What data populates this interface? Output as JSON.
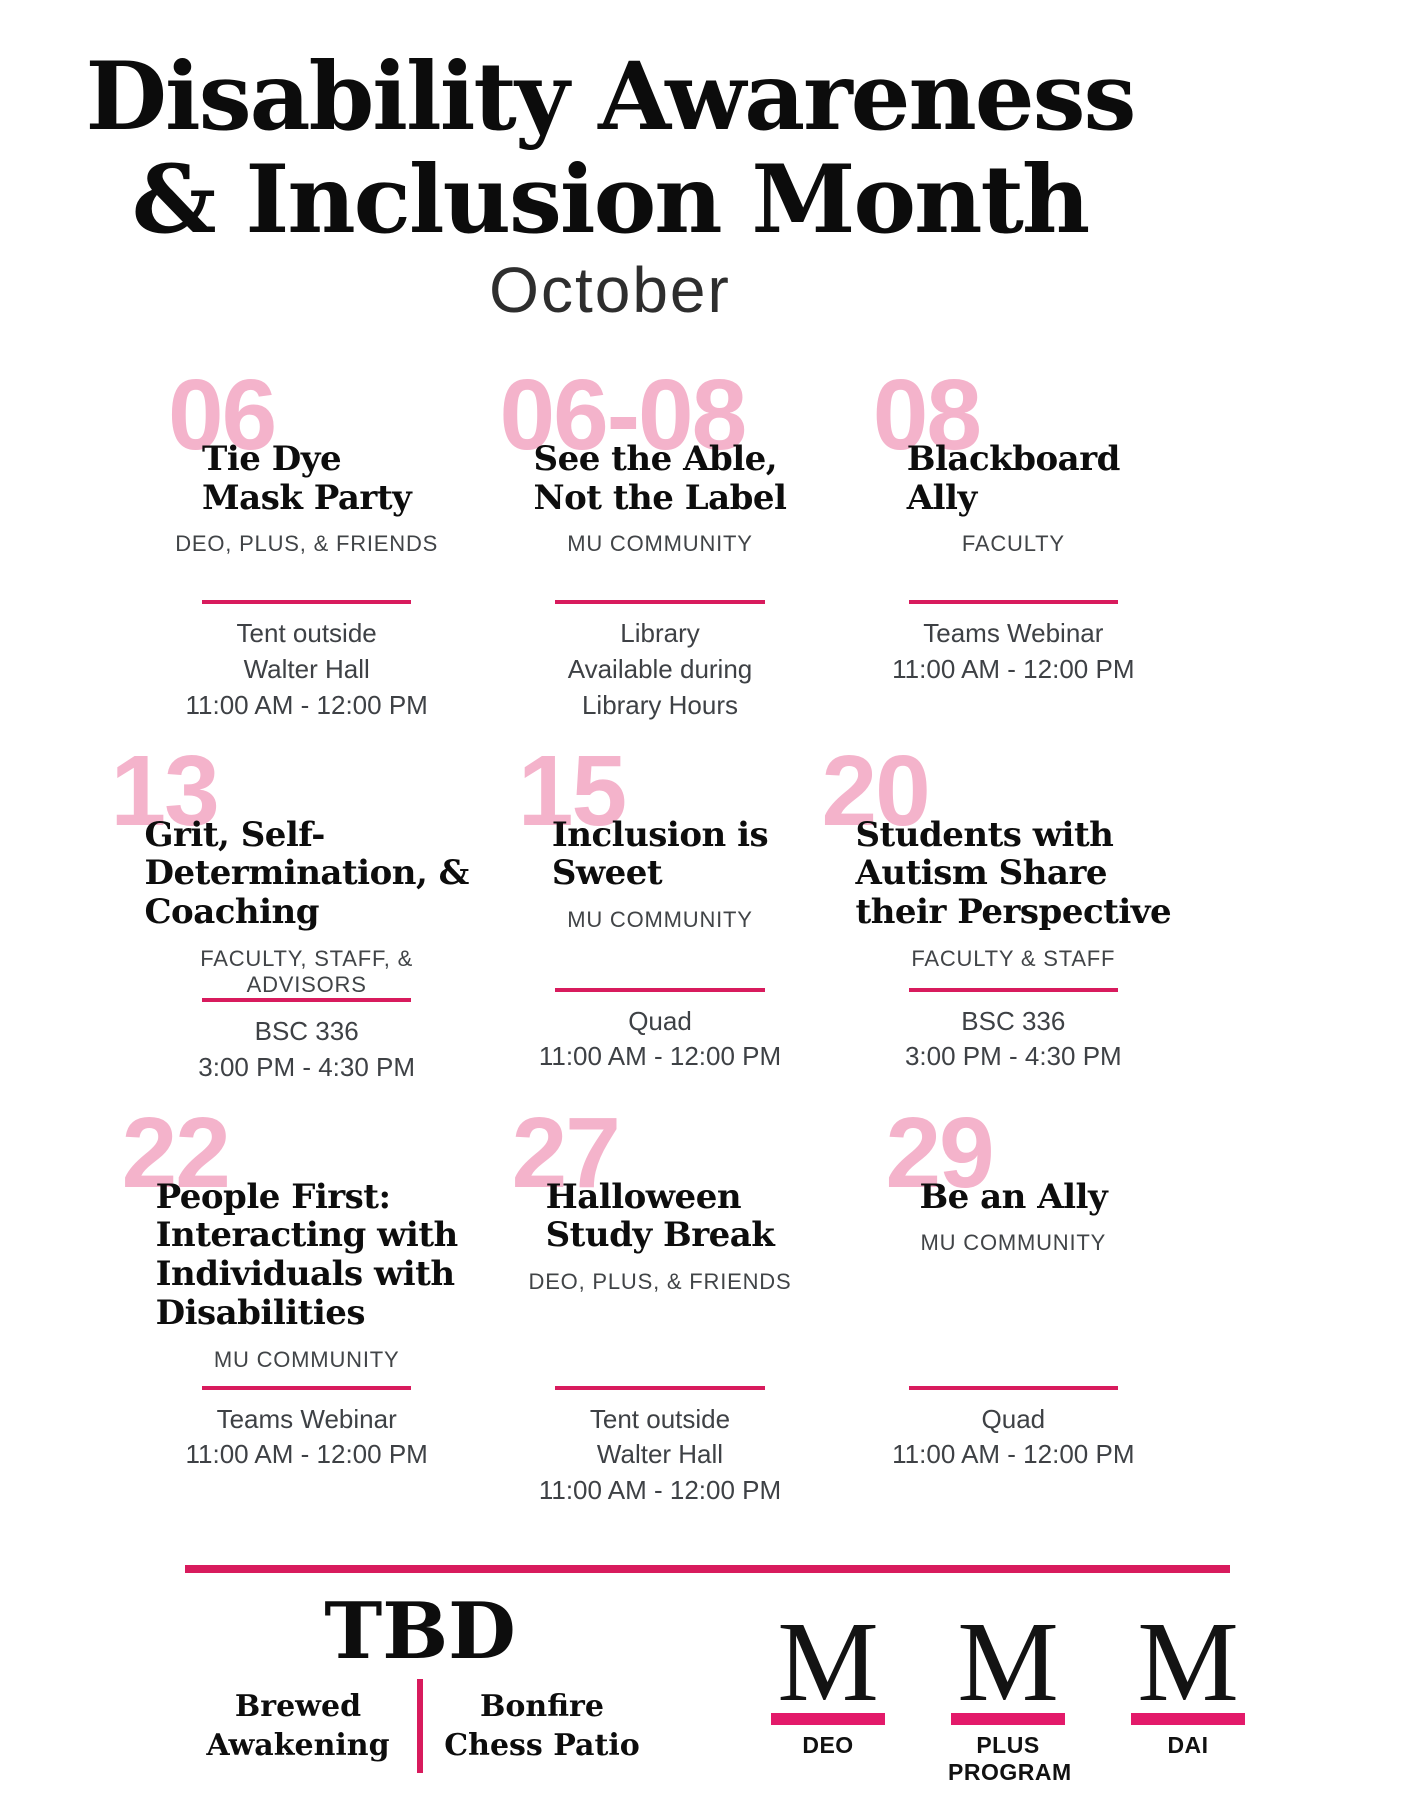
{
  "colors": {
    "date_pink": "#f4b3cb",
    "rule_pink": "#d81b5d",
    "logo_bar_pink": "#e31a6a",
    "title_black": "#0d0d0d",
    "body_gray": "#3e4145"
  },
  "header": {
    "title": "Disability Awareness\n& Inclusion Month",
    "subtitle": "October"
  },
  "events": [
    {
      "date": "06",
      "title": "Tie Dye\nMask Party",
      "audience": "DEO, PLUS, & FRIENDS",
      "details": "Tent outside\nWalter Hall\n11:00 AM - 12:00 PM"
    },
    {
      "date": "06-08",
      "title": "See the Able,\nNot the Label",
      "audience": "MU COMMUNITY",
      "details": "Library\nAvailable during\nLibrary Hours"
    },
    {
      "date": "08",
      "title": "Blackboard\nAlly",
      "audience": "FACULTY",
      "details": "Teams Webinar\n11:00 AM - 12:00 PM"
    },
    {
      "date": "13",
      "title": "Grit, Self-\nDetermination, &\nCoaching",
      "audience": "FACULTY, STAFF, & ADVISORS",
      "details": "BSC 336\n3:00 PM - 4:30 PM"
    },
    {
      "date": "15",
      "title": "Inclusion is\nSweet",
      "audience": "MU COMMUNITY",
      "details": "Quad\n11:00 AM - 12:00 PM"
    },
    {
      "date": "20",
      "title": "Students with\nAutism Share\ntheir Perspective",
      "audience": "FACULTY & STAFF",
      "details": "BSC 336\n3:00 PM - 4:30 PM"
    },
    {
      "date": "22",
      "title": "People First:\nInteracting with\nIndividuals with\nDisabilities",
      "audience": "MU COMMUNITY",
      "details": "Teams Webinar\n11:00 AM - 12:00 PM"
    },
    {
      "date": "27",
      "title": "Halloween\nStudy Break",
      "audience": "DEO, PLUS, & FRIENDS",
      "details": "Tent outside\nWalter Hall\n11:00 AM - 12:00 PM"
    },
    {
      "date": "29",
      "title": "Be an Ally",
      "audience": "MU COMMUNITY",
      "details": "Quad\n11:00 AM - 12:00 PM"
    }
  ],
  "footer": {
    "tbd": "TBD",
    "venue_left": "Brewed\nAwakening",
    "venue_right": "Bonfire\nChess Patio",
    "logos": [
      {
        "letter": "M",
        "label": "DEO"
      },
      {
        "letter": "M",
        "label": "PLUS PROGRAM"
      },
      {
        "letter": "M",
        "label": "DAI"
      }
    ]
  }
}
